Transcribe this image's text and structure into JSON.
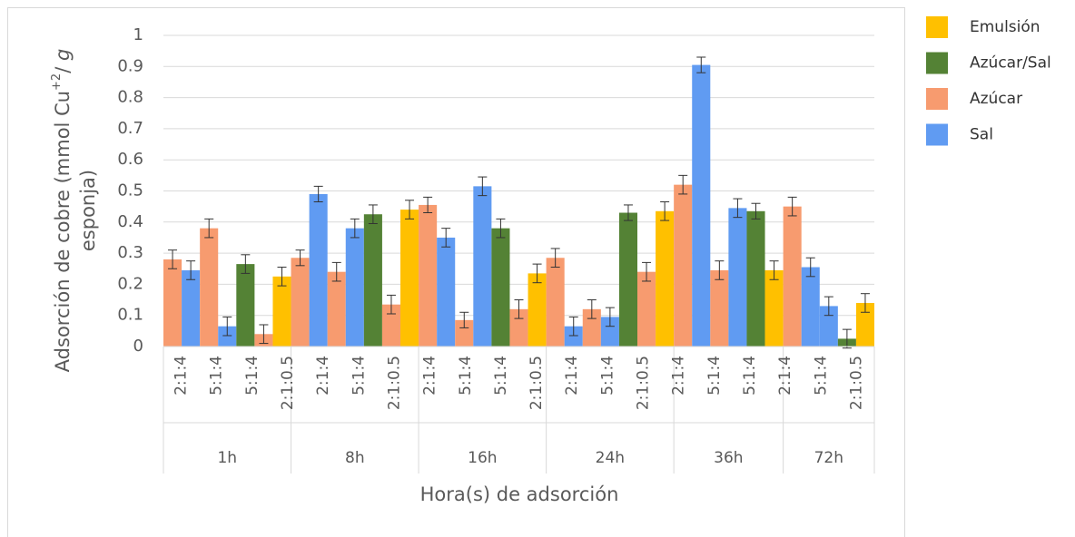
{
  "chart_data": {
    "type": "bar",
    "y_label_line1": [
      "Adsorción de cobre (mmol Cu",
      "+2",
      "/ ",
      "g"
    ],
    "y_label_line2": "esponja)",
    "x_label": "Hora(s) de adsorción",
    "ylim": [
      0,
      1
    ],
    "yticks": [
      0,
      0.1,
      0.2,
      0.3,
      0.4,
      0.5,
      0.6,
      0.7,
      0.8,
      0.9,
      1
    ],
    "grid": true,
    "legend": "right",
    "series": [
      {
        "name": "Emulsión",
        "color": "#ffc000"
      },
      {
        "name": "Azúcar/Sal",
        "color": "#548235"
      },
      {
        "name": "Azúcar",
        "color": "#f79b6f"
      },
      {
        "name": "Sal",
        "color": "#609bf2"
      }
    ],
    "sublabels": [
      "2:1:4",
      "5:1:4",
      "5:1:4",
      "2:1:0.5",
      "2:1:4",
      "5:1:4",
      "2:1:0.5",
      "2:1:4",
      "5:1:4",
      "5:1:4",
      "2:1:0.5",
      "2:1:4",
      "5:1:4",
      "2:1:0.5",
      "2:1:4",
      "5:1:4",
      "5:1:4",
      "2:1:4",
      "5:1:4",
      "2:1:0.5"
    ],
    "groups": [
      {
        "label": "1h",
        "bars": [
          {
            "series": 2,
            "value": 0.28,
            "error": 0.03
          },
          {
            "series": 3,
            "value": 0.245,
            "error": 0.03
          },
          {
            "series": 2,
            "value": 0.38,
            "error": 0.03
          },
          {
            "series": 3,
            "value": 0.065,
            "error": 0.03
          },
          {
            "series": 1,
            "value": 0.265,
            "error": 0.03
          },
          {
            "series": 2,
            "value": 0.04,
            "error": 0.03
          },
          {
            "series": 0,
            "value": 0.225,
            "error": 0.03
          }
        ]
      },
      {
        "label": "8h",
        "bars": [
          {
            "series": 2,
            "value": 0.285,
            "error": 0.025
          },
          {
            "series": 3,
            "value": 0.49,
            "error": 0.025
          },
          {
            "series": 2,
            "value": 0.24,
            "error": 0.03
          },
          {
            "series": 3,
            "value": 0.38,
            "error": 0.03
          },
          {
            "series": 1,
            "value": 0.425,
            "error": 0.03
          },
          {
            "series": 2,
            "value": 0.135,
            "error": 0.03
          },
          {
            "series": 0,
            "value": 0.44,
            "error": 0.03
          }
        ]
      },
      {
        "label": "16h",
        "bars": [
          {
            "series": 2,
            "value": 0.455,
            "error": 0.025
          },
          {
            "series": 3,
            "value": 0.35,
            "error": 0.03
          },
          {
            "series": 2,
            "value": 0.085,
            "error": 0.025
          },
          {
            "series": 3,
            "value": 0.515,
            "error": 0.03
          },
          {
            "series": 1,
            "value": 0.38,
            "error": 0.03
          },
          {
            "series": 2,
            "value": 0.12,
            "error": 0.03
          },
          {
            "series": 0,
            "value": 0.235,
            "error": 0.03
          }
        ]
      },
      {
        "label": "24h",
        "bars": [
          {
            "series": 2,
            "value": 0.285,
            "error": 0.03
          },
          {
            "series": 3,
            "value": 0.065,
            "error": 0.03
          },
          {
            "series": 2,
            "value": 0.12,
            "error": 0.03
          },
          {
            "series": 3,
            "value": 0.095,
            "error": 0.03
          },
          {
            "series": 1,
            "value": 0.43,
            "error": 0.025
          },
          {
            "series": 2,
            "value": 0.24,
            "error": 0.03
          },
          {
            "series": 0,
            "value": 0.435,
            "error": 0.03
          }
        ]
      },
      {
        "label": "36h",
        "bars": [
          {
            "series": 2,
            "value": 0.52,
            "error": 0.03
          },
          {
            "series": 3,
            "value": 0.905,
            "error": 0.025
          },
          {
            "series": 2,
            "value": 0.245,
            "error": 0.03
          },
          {
            "series": 3,
            "value": 0.445,
            "error": 0.03
          },
          {
            "series": 1,
            "value": 0.435,
            "error": 0.025
          },
          {
            "series": 0,
            "value": 0.245,
            "error": 0.03
          }
        ]
      },
      {
        "label": "72h",
        "bars": [
          {
            "series": 2,
            "value": 0.45,
            "error": 0.03
          },
          {
            "series": 3,
            "value": 0.255,
            "error": 0.03
          },
          {
            "series": 3,
            "value": 0.13,
            "error": 0.03
          },
          {
            "series": 1,
            "value": 0.025,
            "error": 0.03
          },
          {
            "series": 0,
            "value": 0.14,
            "error": 0.03
          }
        ]
      }
    ]
  }
}
